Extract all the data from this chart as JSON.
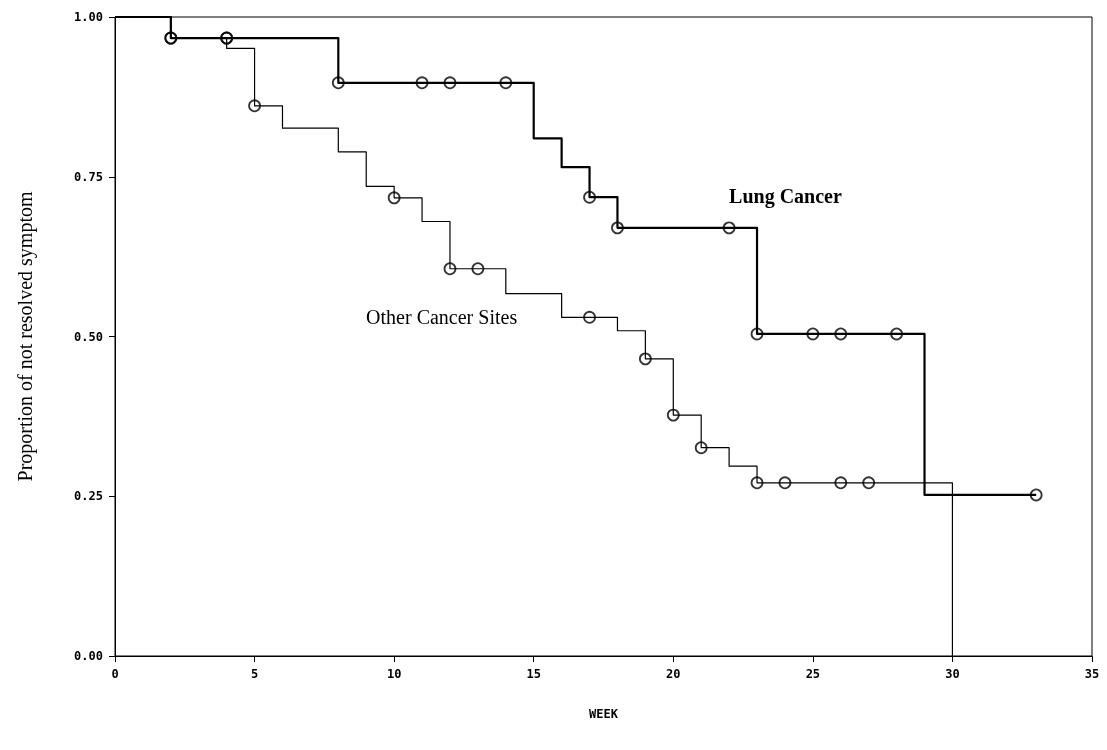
{
  "chart_data": {
    "type": "step",
    "xlabel": "WEEK",
    "ylabel": "Proportion of not resolved symptom",
    "xlim": [
      0,
      35
    ],
    "xticks": [
      0,
      5,
      10,
      15,
      20,
      25,
      30,
      35
    ],
    "ylim": [
      0,
      1
    ],
    "yticks": [
      {
        "value": 0,
        "label": "0.00"
      },
      {
        "value": 0.25,
        "label": "0.25"
      },
      {
        "value": 0.5,
        "label": "0.50"
      },
      {
        "value": 0.75,
        "label": "0.75"
      },
      {
        "value": 1,
        "label": "1.00"
      }
    ],
    "grid": false,
    "series": [
      {
        "name": "Lung Cancer",
        "color": "#000000",
        "marker": "none",
        "x": [
          0,
          2,
          8,
          15,
          16,
          17,
          18,
          23,
          29,
          33
        ],
        "values": [
          1,
          0.967,
          0.897,
          0.81,
          0.765,
          0.718,
          0.67,
          0.504,
          0.252,
          0.252
        ]
      },
      {
        "name": "Other Cancer Sites",
        "color": "#000000",
        "marker": "none",
        "x": [
          0,
          2,
          4,
          5,
          6,
          8,
          9,
          10,
          11,
          12,
          14,
          16,
          18,
          19,
          20,
          21,
          22,
          23,
          30
        ],
        "values": [
          1,
          0.967,
          0.951,
          0.861,
          0.826,
          0.789,
          0.735,
          0.717,
          0.68,
          0.606,
          0.567,
          0.53,
          0.509,
          0.465,
          0.377,
          0.326,
          0.297,
          0.271,
          0
        ]
      },
      {
        "type": "scatter",
        "color": "#000000",
        "marker": "circle",
        "x": [
          2,
          4,
          8,
          11,
          12,
          14,
          17,
          18,
          22,
          23,
          25,
          26,
          28,
          33
        ],
        "values": [
          0.967,
          0.967,
          0.897,
          0.897,
          0.897,
          0.897,
          0.718,
          0.67,
          0.67,
          0.504,
          0.504,
          0.504,
          0.504,
          0.252
        ]
      },
      {
        "type": "scatter",
        "color": "#000000",
        "marker": "circle",
        "x": [
          2,
          4,
          5,
          10,
          12,
          13,
          17,
          19,
          20,
          21,
          23,
          24,
          26,
          27
        ],
        "values": [
          0.967,
          0.967,
          0.861,
          0.717,
          0.606,
          0.606,
          0.53,
          0.465,
          0.377,
          0.326,
          0.271,
          0.271,
          0.271,
          0.271
        ]
      }
    ]
  }
}
